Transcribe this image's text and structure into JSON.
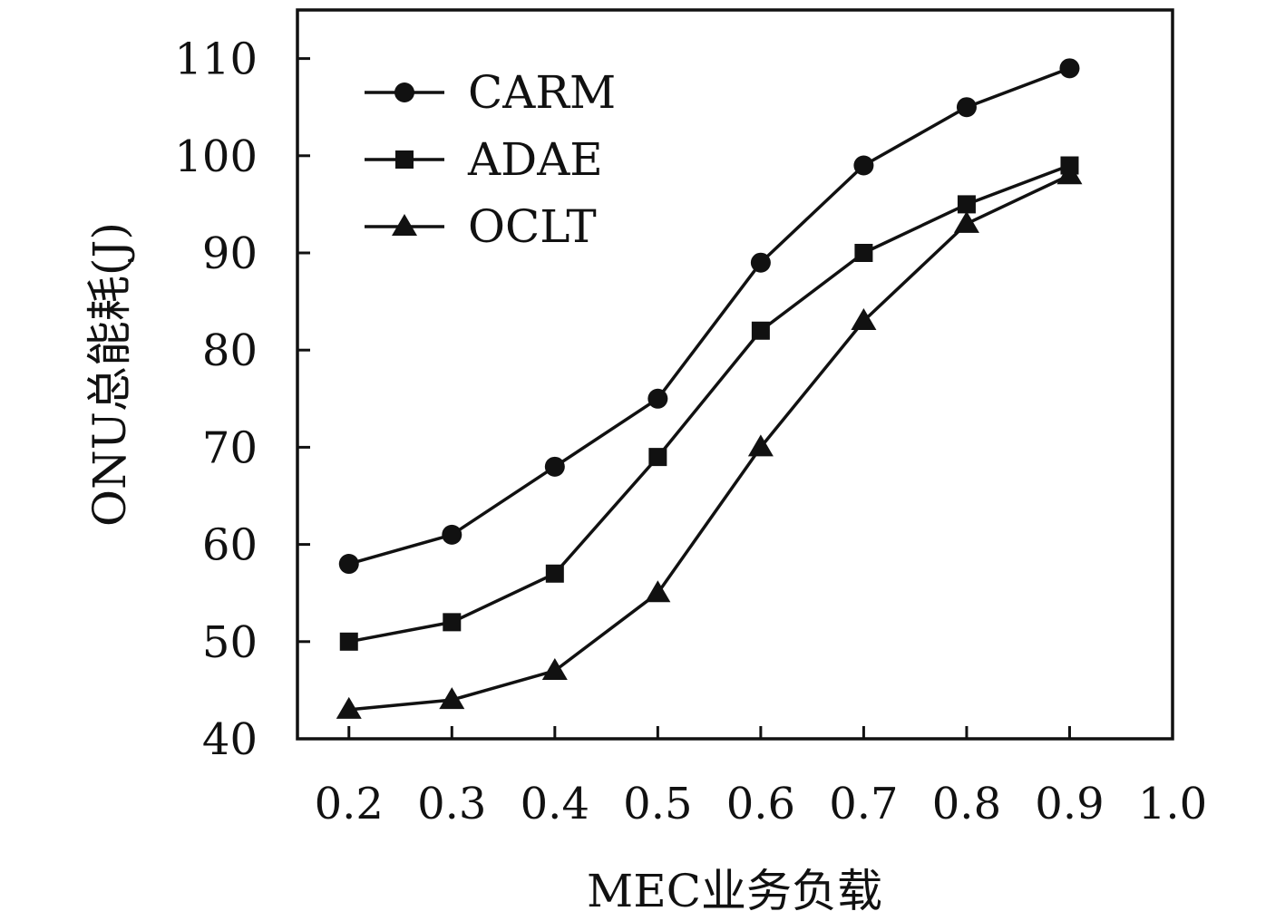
{
  "chart_data": {
    "type": "line",
    "xlabel": "MEC业务负载",
    "ylabel": "ONU总能耗(J)",
    "x": [
      0.2,
      0.3,
      0.4,
      0.5,
      0.6,
      0.7,
      0.8,
      0.9
    ],
    "xticks": [
      "0.2",
      "0.3",
      "0.4",
      "0.5",
      "0.6",
      "0.7",
      "0.8",
      "0.9",
      "1.0"
    ],
    "yticks": [
      "40",
      "50",
      "60",
      "70",
      "80",
      "90",
      "100",
      "110"
    ],
    "xlim": [
      0.15,
      1.0
    ],
    "ylim": [
      40,
      115
    ],
    "grid": false,
    "legend_position": "top-left",
    "series": [
      {
        "name": "CARM",
        "marker": "circle",
        "values": [
          58,
          61,
          68,
          75,
          89,
          99,
          105,
          109
        ]
      },
      {
        "name": "ADAE",
        "marker": "square",
        "values": [
          50,
          52,
          57,
          69,
          82,
          90,
          95,
          99
        ]
      },
      {
        "name": "OCLT",
        "marker": "triangle",
        "values": [
          43,
          44,
          47,
          55,
          70,
          83,
          93,
          98
        ]
      }
    ],
    "colors": {
      "line": "#111111",
      "marker": "#111111"
    }
  }
}
